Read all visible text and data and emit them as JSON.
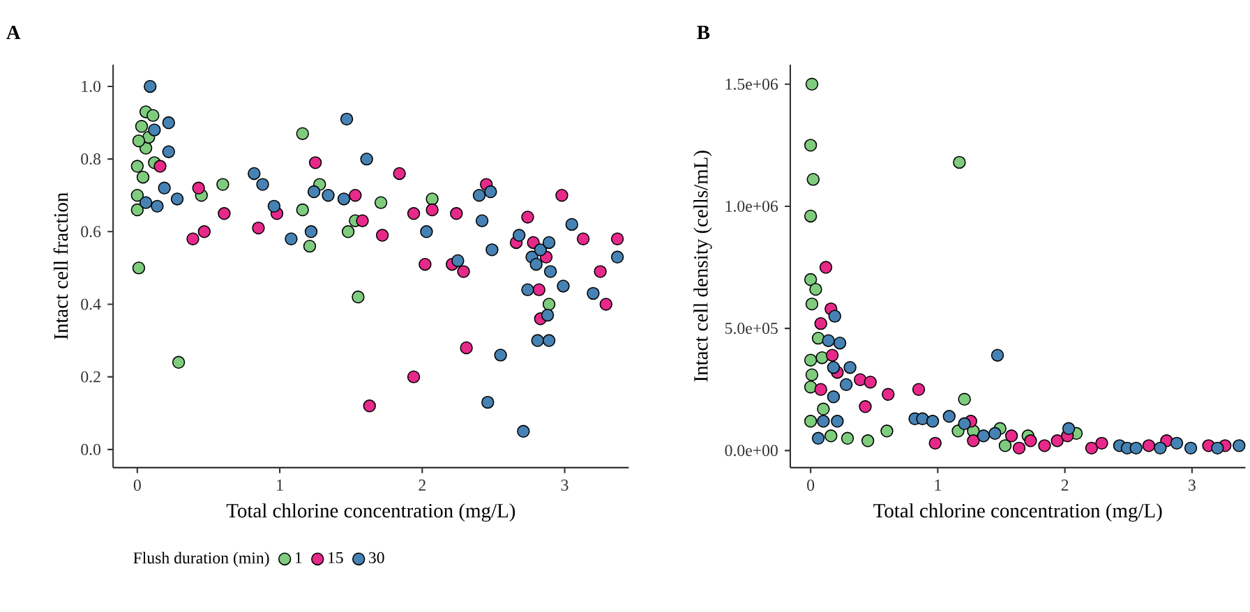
{
  "chart_data": [
    {
      "type": "scatter",
      "title": "A",
      "xlabel": "Total chlorine concentration (mg/L)",
      "ylabel": "Intact cell fraction",
      "xlim": [
        -0.17,
        3.45
      ],
      "ylim": [
        -0.05,
        1.06
      ],
      "xticks": [
        0,
        1,
        2,
        3
      ],
      "yticks": [
        {
          "value": 0,
          "label": "0.0"
        },
        {
          "value": 0.2,
          "label": "0.2"
        },
        {
          "value": 0.4,
          "label": "0.4"
        },
        {
          "value": 0.6,
          "label": "0.6"
        },
        {
          "value": 0.8,
          "label": "0.8"
        },
        {
          "value": 1,
          "label": "1.0"
        }
      ],
      "marker": "circle",
      "legend": "bottom",
      "legend_title": "Flush duration (min)",
      "series": [
        {
          "name": "1",
          "color": "#7fcc7f",
          "x": [
            0.01,
            0.29,
            0,
            0,
            0,
            0.03,
            0.06,
            0.11,
            0.06,
            0.08,
            0.01,
            0.04,
            0.12,
            1.16,
            0.6,
            0.45,
            1.16,
            1.21,
            1.28,
            1.48,
            1.53,
            1.55,
            1.71,
            2.07,
            2.89
          ],
          "values": [
            0.5,
            0.24,
            0.66,
            0.7,
            0.78,
            0.89,
            0.93,
            0.92,
            0.83,
            0.86,
            0.85,
            0.75,
            0.79,
            0.87,
            0.73,
            0.7,
            0.66,
            0.56,
            0.73,
            0.6,
            0.63,
            0.42,
            0.68,
            0.69,
            0.4
          ]
        },
        {
          "name": "15",
          "color": "#e7298a",
          "x": [
            1.25,
            1.84,
            0.39,
            0.47,
            0.61,
            0.85,
            0.98,
            1.53,
            1.58,
            1.72,
            1.63,
            1.94,
            1.94,
            2.02,
            2.07,
            2.24,
            2.21,
            2.29,
            2.31,
            2.45,
            2.66,
            2.74,
            2.78,
            2.82,
            2.83,
            2.87,
            2.98,
            3.13,
            3.25,
            3.29,
            3.37,
            0.43,
            0.16
          ],
          "values": [
            0.79,
            0.76,
            0.58,
            0.6,
            0.65,
            0.61,
            0.65,
            0.7,
            0.63,
            0.59,
            0.12,
            0.2,
            0.65,
            0.51,
            0.66,
            0.65,
            0.51,
            0.49,
            0.28,
            0.73,
            0.57,
            0.64,
            0.57,
            0.44,
            0.36,
            0.53,
            0.7,
            0.58,
            0.49,
            0.4,
            0.58,
            0.72,
            0.78
          ]
        },
        {
          "name": "30",
          "color": "#4682b4",
          "x": [
            0.09,
            0.22,
            0.22,
            0.12,
            0.19,
            0.28,
            0.14,
            0.06,
            0.82,
            0.88,
            0.96,
            1.08,
            1.22,
            1.24,
            1.34,
            1.45,
            1.47,
            1.61,
            2.03,
            2.25,
            2.4,
            2.48,
            2.42,
            2.49,
            2.46,
            2.55,
            2.68,
            2.71,
            2.74,
            2.77,
            2.8,
            2.83,
            2.81,
            2.88,
            2.89,
            2.89,
            2.9,
            2.99,
            3.05,
            3.2,
            3.37
          ],
          "values": [
            1.0,
            0.9,
            0.82,
            0.88,
            0.72,
            0.69,
            0.67,
            0.68,
            0.76,
            0.73,
            0.67,
            0.58,
            0.6,
            0.71,
            0.7,
            0.69,
            0.91,
            0.8,
            0.6,
            0.52,
            0.7,
            0.71,
            0.63,
            0.55,
            0.13,
            0.26,
            0.59,
            0.05,
            0.44,
            0.53,
            0.51,
            0.55,
            0.3,
            0.37,
            0.3,
            0.57,
            0.49,
            0.45,
            0.62,
            0.43,
            0.53
          ]
        }
      ]
    },
    {
      "type": "scatter",
      "title": "B",
      "xlabel": "Total chlorine concentration (mg/L)",
      "ylabel": "Intact cell density (cells/mL)",
      "xlim": [
        -0.16,
        3.42
      ],
      "ylim": [
        -70000,
        1580000
      ],
      "xticks": [
        0,
        1,
        2,
        3
      ],
      "yticks": [
        {
          "value": 0,
          "label": "0.0e+00"
        },
        {
          "value": 500000,
          "label": "5.0e+05"
        },
        {
          "value": 1000000,
          "label": "1.0e+06"
        },
        {
          "value": 1500000,
          "label": "1.5e+06"
        }
      ],
      "marker": "circle",
      "series": [
        {
          "color": "#7fcc7f",
          "x": [
            0.01,
            0,
            0.02,
            0,
            1.17,
            0,
            0.04,
            0.01,
            0.06,
            0,
            0.01,
            0,
            0.09,
            0,
            0.16,
            0.29,
            0.45,
            0.6,
            1.21,
            1.16,
            1.28,
            1.49,
            1.53,
            1.71,
            2.09,
            0.1
          ],
          "values": [
            1500000,
            1250000,
            1110000,
            960000,
            1180000,
            700000,
            660000,
            600000,
            460000,
            370000,
            310000,
            260000,
            380000,
            120000,
            60000,
            50000,
            40000,
            80000,
            210000,
            80000,
            80000,
            90000,
            20000,
            60000,
            70000,
            170000
          ]
        },
        {
          "color": "#e7298a",
          "x": [
            0.12,
            0.16,
            0.08,
            0.17,
            0.08,
            0.39,
            0.47,
            0.43,
            0.61,
            0.85,
            0.98,
            1.26,
            1.28,
            1.58,
            1.64,
            1.73,
            1.84,
            1.94,
            2.02,
            2.21,
            2.29,
            2.46,
            2.66,
            2.8,
            2.89,
            3.13,
            3.26,
            0.21
          ],
          "values": [
            750000,
            580000,
            520000,
            390000,
            250000,
            290000,
            280000,
            180000,
            230000,
            250000,
            30000,
            120000,
            40000,
            60000,
            10000,
            40000,
            20000,
            40000,
            60000,
            10000,
            30000,
            null,
            20000,
            40000,
            null,
            20000,
            20000,
            320000
          ]
        },
        {
          "color": "#4682b4",
          "x": [
            0.19,
            0.23,
            0.18,
            0.31,
            0.28,
            0.18,
            0.1,
            0.21,
            0.06,
            1.47,
            0.82,
            0.88,
            0.96,
            1.09,
            1.21,
            1.36,
            1.45,
            2.03,
            2.43,
            2.49,
            2.56,
            2.75,
            2.88,
            2.99,
            3.2,
            3.37,
            0.14
          ],
          "values": [
            550000,
            440000,
            340000,
            340000,
            270000,
            220000,
            120000,
            120000,
            50000,
            390000,
            130000,
            130000,
            120000,
            140000,
            110000,
            60000,
            70000,
            90000,
            20000,
            10000,
            10000,
            10000,
            30000,
            10000,
            10000,
            20000,
            450000
          ]
        }
      ]
    }
  ]
}
